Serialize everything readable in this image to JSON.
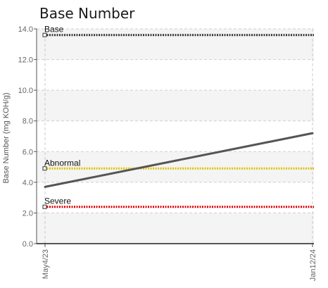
{
  "chart_data": {
    "type": "line",
    "title": "Base Number",
    "xlabel": "",
    "ylabel": "Base Number (mg KOH/g)",
    "ylim": [
      0,
      14
    ],
    "ytick_values": [
      0,
      2,
      4,
      6,
      8,
      10,
      12,
      14
    ],
    "ytick_labels": [
      "0.0",
      "2.0",
      "4.0",
      "6.0",
      "8.0",
      "10.0",
      "12.0",
      "14.0"
    ],
    "x_categories": [
      "May4/23",
      "Jan12/24"
    ],
    "grid": true,
    "alternating_band_colors": [
      "#f4f4f4",
      "#ffffff"
    ],
    "series": [
      {
        "values": [
          3.7,
          7.2
        ],
        "color": "#555555",
        "style": "solid"
      }
    ],
    "reference_lines": [
      {
        "name": "Base",
        "value": 13.6,
        "color": "#333333",
        "style": "dotted"
      },
      {
        "name": "Abnormal",
        "value": 4.9,
        "color": "#e0c200",
        "style": "dotted"
      },
      {
        "name": "Severe",
        "value": 2.4,
        "color": "#e00000",
        "style": "dotted"
      }
    ]
  }
}
